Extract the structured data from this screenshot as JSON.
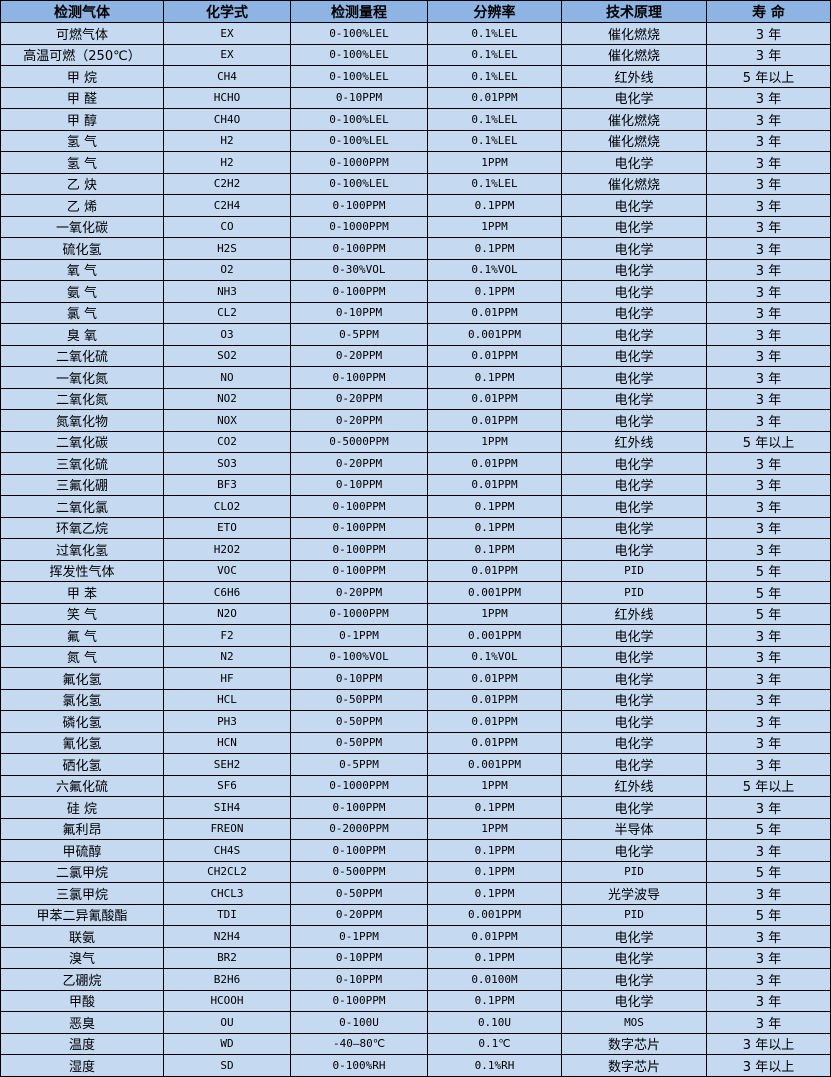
{
  "headers": [
    "检测气体",
    "化学式",
    "检测量程",
    "分辨率",
    "技术原理",
    "寿 命"
  ],
  "rows": [
    [
      "可燃气体",
      "EX",
      "0-100%LEL",
      "0.1%LEL",
      "催化燃烧",
      "3 年"
    ],
    [
      "高温可燃（250℃）",
      "EX",
      "0-100%LEL",
      "0.1%LEL",
      "催化燃烧",
      "3 年"
    ],
    [
      "甲 烷",
      "CH4",
      "0-100%LEL",
      "0.1%LEL",
      "红外线",
      "5 年以上"
    ],
    [
      "甲 醛",
      "HCHO",
      "0-10PPM",
      "0.01PPM",
      "电化学",
      "3 年"
    ],
    [
      "甲 醇",
      "CH4O",
      "0-100%LEL",
      "0.1%LEL",
      "催化燃烧",
      "3 年"
    ],
    [
      "氢 气",
      "H2",
      "0-100%LEL",
      "0.1%LEL",
      "催化燃烧",
      "3 年"
    ],
    [
      "氢 气",
      "H2",
      "0-1000PPM",
      "1PPM",
      "电化学",
      "3 年"
    ],
    [
      "乙 炔",
      "C2H2",
      "0-100%LEL",
      "0.1%LEL",
      "催化燃烧",
      "3 年"
    ],
    [
      "乙 烯",
      "C2H4",
      "0-100PPM",
      "0.1PPM",
      "电化学",
      "3 年"
    ],
    [
      "一氧化碳",
      "CO",
      "0-1000PPM",
      "1PPM",
      "电化学",
      "3 年"
    ],
    [
      "硫化氢",
      "H2S",
      "0-100PPM",
      "0.1PPM",
      "电化学",
      "3 年"
    ],
    [
      "氧 气",
      "O2",
      "0-30%VOL",
      "0.1%VOL",
      "电化学",
      "3 年"
    ],
    [
      "氨 气",
      "NH3",
      "0-100PPM",
      "0.1PPM",
      "电化学",
      "3 年"
    ],
    [
      "氯 气",
      "CL2",
      "0-10PPM",
      "0.01PPM",
      "电化学",
      "3 年"
    ],
    [
      "臭 氧",
      "O3",
      "0-5PPM",
      "0.001PPM",
      "电化学",
      "3 年"
    ],
    [
      "二氧化硫",
      "SO2",
      "0-20PPM",
      "0.01PPM",
      "电化学",
      "3 年"
    ],
    [
      "一氧化氮",
      "NO",
      "0-100PPM",
      "0.1PPM",
      "电化学",
      "3 年"
    ],
    [
      "二氧化氮",
      "NO2",
      "0-20PPM",
      "0.01PPM",
      "电化学",
      "3 年"
    ],
    [
      "氮氧化物",
      "NOX",
      "0-20PPM",
      "0.01PPM",
      "电化学",
      "3 年"
    ],
    [
      "二氧化碳",
      "CO2",
      "0-5000PPM",
      "1PPM",
      "红外线",
      "5 年以上"
    ],
    [
      "三氧化硫",
      "SO3",
      "0-20PPM",
      "0.01PPM",
      "电化学",
      "3 年"
    ],
    [
      "三氟化硼",
      "BF3",
      "0-10PPM",
      "0.01PPM",
      "电化学",
      "3 年"
    ],
    [
      "二氧化氯",
      "CLO2",
      "0-100PPM",
      "0.1PPM",
      "电化学",
      "3 年"
    ],
    [
      "环氧乙烷",
      "ETO",
      "0-100PPM",
      "0.1PPM",
      "电化学",
      "3 年"
    ],
    [
      "过氧化氢",
      "H2O2",
      "0-100PPM",
      "0.1PPM",
      "电化学",
      "3 年"
    ],
    [
      "挥发性气体",
      "VOC",
      "0-100PPM",
      "0.01PPM",
      "PID",
      "5 年"
    ],
    [
      "甲 苯",
      "C6H6",
      "0-20PPM",
      "0.001PPM",
      "PID",
      "5 年"
    ],
    [
      "笑 气",
      "N2O",
      "0-1000PPM",
      "1PPM",
      "红外线",
      "5 年"
    ],
    [
      "氟 气",
      "F2",
      "0-1PPM",
      "0.001PPM",
      "电化学",
      "3 年"
    ],
    [
      "氮 气",
      "N2",
      "0-100%VOL",
      "0.1%VOL",
      "电化学",
      "3 年"
    ],
    [
      "氟化氢",
      "HF",
      "0-10PPM",
      "0.01PPM",
      "电化学",
      "3 年"
    ],
    [
      "氯化氢",
      "HCL",
      "0-50PPM",
      "0.01PPM",
      "电化学",
      "3 年"
    ],
    [
      "磷化氢",
      "PH3",
      "0-50PPM",
      "0.01PPM",
      "电化学",
      "3 年"
    ],
    [
      "氰化氢",
      "HCN",
      "0-50PPM",
      "0.01PPM",
      "电化学",
      "3 年"
    ],
    [
      "硒化氢",
      "SEH2",
      "0-5PPM",
      "0.001PPM",
      "电化学",
      "3 年"
    ],
    [
      "六氟化硫",
      "SF6",
      "0-1000PPM",
      "1PPM",
      "红外线",
      "5 年以上"
    ],
    [
      "硅 烷",
      "SIH4",
      "0-100PPM",
      "0.1PPM",
      "电化学",
      "3 年"
    ],
    [
      "氟利昂",
      "FREON",
      "0-2000PPM",
      "1PPM",
      "半导体",
      "5 年"
    ],
    [
      "甲硫醇",
      "CH4S",
      "0-100PPM",
      "0.1PPM",
      "电化学",
      "3 年"
    ],
    [
      "二氯甲烷",
      "CH2CL2",
      "0-500PPM",
      "0.1PPM",
      "PID",
      "5 年"
    ],
    [
      "三氯甲烷",
      "CHCL3",
      "0-50PPM",
      "0.1PPM",
      "光学波导",
      "3 年"
    ],
    [
      "甲苯二异氰酸酯",
      "TDI",
      "0-20PPM",
      "0.001PPM",
      "PID",
      "5 年"
    ],
    [
      "联氨",
      "N2H4",
      "0-1PPM",
      "0.01PPM",
      "电化学",
      "3 年"
    ],
    [
      "溴气",
      "BR2",
      "0-10PPM",
      "0.1PPM",
      "电化学",
      "3 年"
    ],
    [
      "乙硼烷",
      "B2H6",
      "0-10PPM",
      "0.0100M",
      "电化学",
      "3 年"
    ],
    [
      "甲酸",
      "HCOOH",
      "0-100PPM",
      "0.1PPM",
      "电化学",
      "3 年"
    ],
    [
      "恶臭",
      "OU",
      "0-100U",
      "0.10U",
      "MOS",
      "3 年"
    ],
    [
      "温度",
      "WD",
      "-40—80℃",
      "0.1℃",
      "数字芯片",
      "3 年以上"
    ],
    [
      "湿度",
      "SD",
      "0-100%RH",
      "0.1%RH",
      "数字芯片",
      "3 年以上"
    ]
  ]
}
